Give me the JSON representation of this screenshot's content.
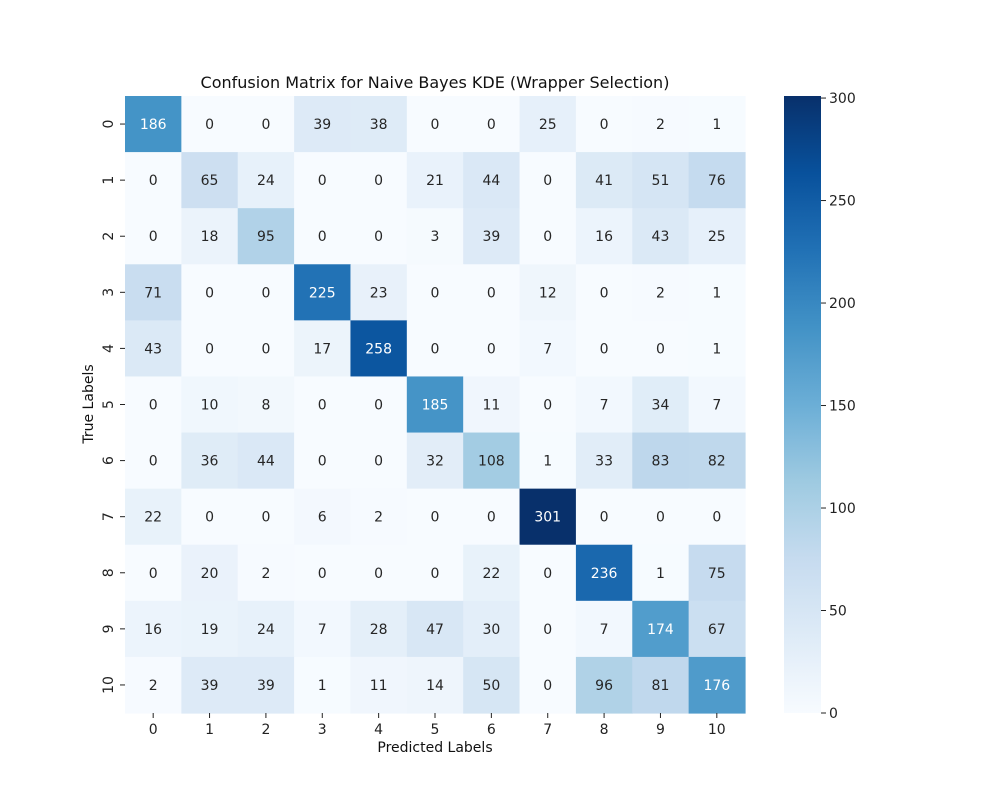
{
  "chart_data": {
    "type": "heatmap",
    "title": "Confusion Matrix for Naive Bayes KDE (Wrapper Selection)",
    "xlabel": "Predicted Labels",
    "ylabel": "True Labels",
    "x_categories": [
      "0",
      "1",
      "2",
      "3",
      "4",
      "5",
      "6",
      "7",
      "8",
      "9",
      "10"
    ],
    "y_categories": [
      "0",
      "1",
      "2",
      "3",
      "4",
      "5",
      "6",
      "7",
      "8",
      "9",
      "10"
    ],
    "values": [
      [
        186,
        0,
        0,
        39,
        38,
        0,
        0,
        25,
        0,
        2,
        1
      ],
      [
        0,
        65,
        24,
        0,
        0,
        21,
        44,
        0,
        41,
        51,
        76
      ],
      [
        0,
        18,
        95,
        0,
        0,
        3,
        39,
        0,
        16,
        43,
        25
      ],
      [
        71,
        0,
        0,
        225,
        23,
        0,
        0,
        12,
        0,
        2,
        1
      ],
      [
        43,
        0,
        0,
        17,
        258,
        0,
        0,
        7,
        0,
        0,
        1
      ],
      [
        0,
        10,
        8,
        0,
        0,
        185,
        11,
        0,
        7,
        34,
        7
      ],
      [
        0,
        36,
        44,
        0,
        0,
        32,
        108,
        1,
        33,
        83,
        82
      ],
      [
        22,
        0,
        0,
        6,
        2,
        0,
        0,
        301,
        0,
        0,
        0
      ],
      [
        0,
        20,
        2,
        0,
        0,
        0,
        22,
        0,
        236,
        1,
        75
      ],
      [
        16,
        19,
        24,
        7,
        28,
        47,
        30,
        0,
        7,
        174,
        67
      ],
      [
        2,
        39,
        39,
        1,
        11,
        14,
        50,
        0,
        96,
        81,
        176
      ]
    ],
    "colormap": "Blues",
    "colorbar": {
      "range": [
        0,
        301
      ],
      "ticks": [
        0,
        50,
        100,
        150,
        200,
        250,
        300
      ]
    },
    "grid": false
  }
}
